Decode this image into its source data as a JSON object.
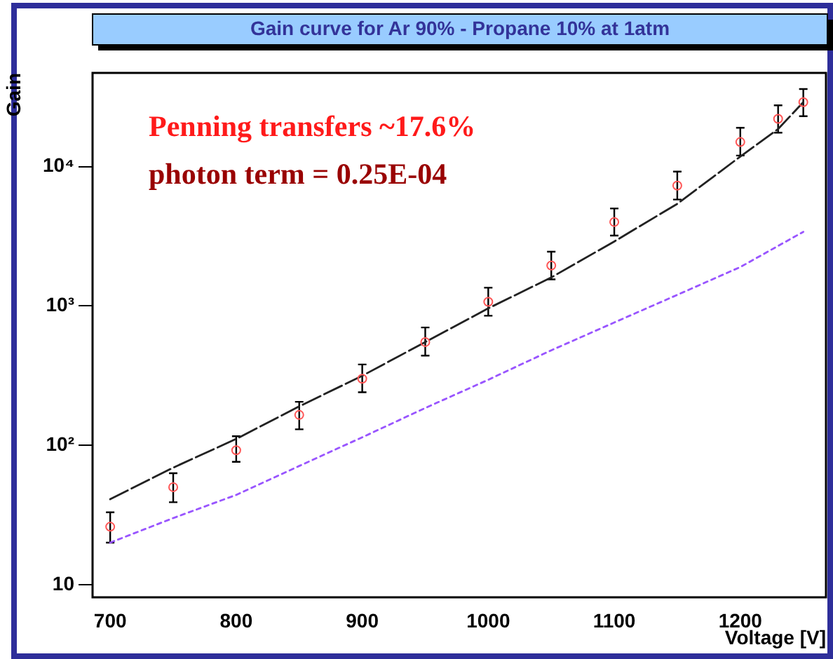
{
  "chart_data": {
    "type": "scatter",
    "title": "Gain curve for Ar 90% - Propane 10% at 1atm",
    "xlabel": "Voltage [V]",
    "ylabel": "Gain",
    "annotations": [
      "Penning transfers ~17.6%",
      "photon term = 0.25E-04"
    ],
    "x": [
      700,
      750,
      800,
      850,
      900,
      950,
      1000,
      1050,
      1100,
      1150,
      1200,
      1230,
      1250
    ],
    "series": [
      {
        "color": "#ff5555",
        "marker": "circle",
        "values": [
          26,
          50,
          92,
          165,
          300,
          550,
          1070,
          1950,
          4000,
          7300,
          15000,
          22000,
          29000
        ],
        "errors": [
          [
            20,
            33
          ],
          [
            39,
            63
          ],
          [
            76,
            116
          ],
          [
            130,
            205
          ],
          [
            240,
            380
          ],
          [
            440,
            700
          ],
          [
            850,
            1350
          ],
          [
            1550,
            2450
          ],
          [
            3200,
            5000
          ],
          [
            5800,
            9200
          ],
          [
            12000,
            19000
          ],
          [
            17500,
            27500
          ],
          [
            23000,
            36000
          ]
        ]
      },
      {
        "type": "line",
        "color": "#222222",
        "line_style": "dashed",
        "marker": "none",
        "x": [
          700,
          750,
          800,
          850,
          900,
          950,
          1000,
          1050,
          1100,
          1150,
          1200,
          1230,
          1250
        ],
        "values": [
          41,
          69,
          111,
          190,
          315,
          550,
          960,
          1600,
          2900,
          5400,
          11800,
          18600,
          29000
        ]
      },
      {
        "type": "line",
        "color": "#9955ff",
        "line_style": "dotted",
        "marker": "none",
        "x": [
          700,
          750,
          800,
          850,
          900,
          950,
          1000,
          1050,
          1100,
          1150,
          1200,
          1250
        ],
        "values": [
          20,
          30,
          44,
          71,
          114,
          185,
          295,
          480,
          760,
          1200,
          1900,
          3400
        ]
      }
    ],
    "log": "y",
    "grid": false,
    "legend": false,
    "xlim": [
      686,
      1268
    ],
    "xticks": [
      700,
      800,
      900,
      1000,
      1100,
      1200
    ],
    "ylim": [
      8.1,
      47000
    ],
    "yticks": [
      10,
      {
        "value": 100,
        "label": "10²"
      },
      {
        "value": 1000,
        "label": "10³"
      },
      {
        "value": 10000,
        "label": "10⁴"
      }
    ]
  }
}
